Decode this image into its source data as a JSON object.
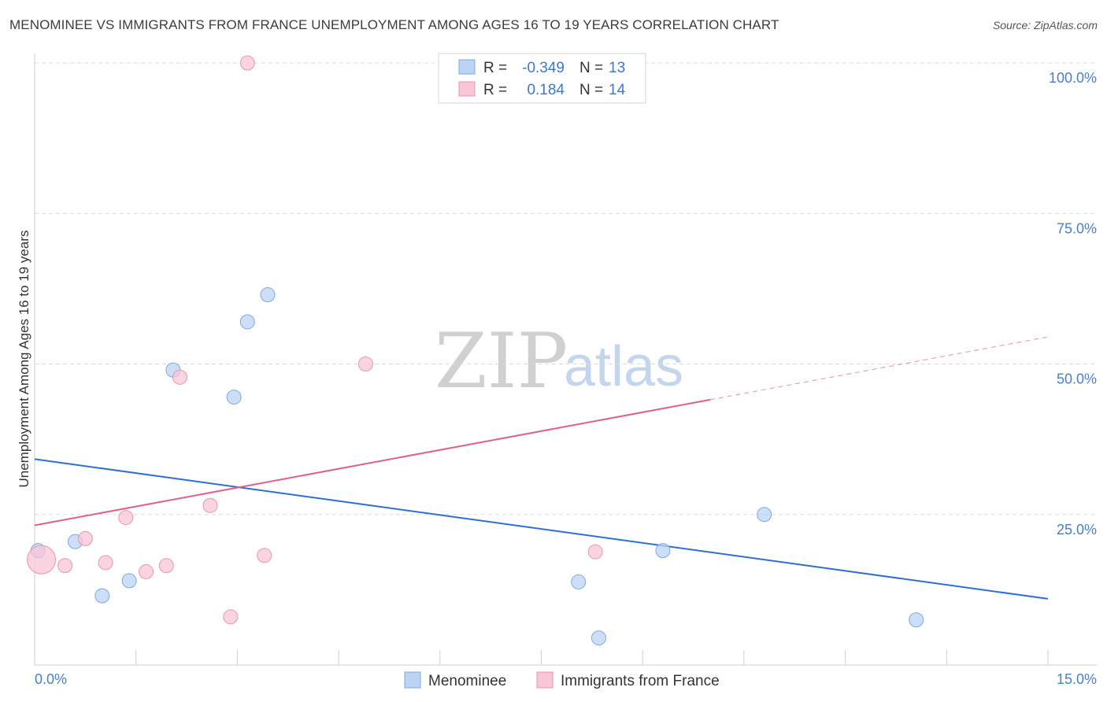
{
  "title": "MENOMINEE VS IMMIGRANTS FROM FRANCE UNEMPLOYMENT AMONG AGES 16 TO 19 YEARS CORRELATION CHART",
  "source": "Source: ZipAtlas.com",
  "watermark": {
    "zip": "ZIP",
    "atlas": "atlas"
  },
  "colors": {
    "blue_fill": "#bcd4f4",
    "blue_stroke": "#7fa8e0",
    "blue_line": "#2f6fd0",
    "pink_fill": "#f8c6d4",
    "pink_stroke": "#e896b0",
    "pink_line": "#e0608a",
    "grid": "#dadada",
    "axis_text": "#4a7fc8"
  },
  "legend_top": {
    "rows": [
      {
        "r_label": "R =",
        "r_value": "-0.349",
        "n_label": "N =",
        "n_value": "13"
      },
      {
        "r_label": "R =",
        "r_value": "0.184",
        "n_label": "N =",
        "n_value": "14"
      }
    ]
  },
  "legend_bottom": [
    "Menominee",
    "Immigrants from France"
  ],
  "chart_data": {
    "type": "scatter",
    "xlabel": "",
    "ylabel": "Unemployment Among Ages 16 to 19 years",
    "xlim": [
      0,
      15
    ],
    "ylim": [
      0,
      102
    ],
    "x_tick_labels": [
      "0.0%",
      "15.0%"
    ],
    "y_tick_labels": [
      "25.0%",
      "50.0%",
      "75.0%",
      "100.0%"
    ],
    "y_ticks": [
      25,
      50,
      75,
      100
    ],
    "series": [
      {
        "name": "Menominee",
        "color": "blue",
        "points": [
          {
            "x": 0.05,
            "y": 19.0,
            "r": 9
          },
          {
            "x": 0.6,
            "y": 20.5,
            "r": 9
          },
          {
            "x": 1.0,
            "y": 11.5,
            "r": 9
          },
          {
            "x": 1.4,
            "y": 14.0,
            "r": 9
          },
          {
            "x": 2.05,
            "y": 49.0,
            "r": 9
          },
          {
            "x": 2.95,
            "y": 44.5,
            "r": 9
          },
          {
            "x": 3.15,
            "y": 57.0,
            "r": 9
          },
          {
            "x": 3.45,
            "y": 61.5,
            "r": 9
          },
          {
            "x": 8.05,
            "y": 13.8,
            "r": 9
          },
          {
            "x": 8.35,
            "y": 4.5,
            "r": 9
          },
          {
            "x": 9.3,
            "y": 19.0,
            "r": 9
          },
          {
            "x": 10.8,
            "y": 25.0,
            "r": 9
          },
          {
            "x": 13.05,
            "y": 7.5,
            "r": 9
          }
        ],
        "trend": {
          "x0": 0,
          "y0": 34.2,
          "x1": 15,
          "y1": 11.0,
          "dashed_from": null
        }
      },
      {
        "name": "Immigrants from France",
        "color": "pink",
        "points": [
          {
            "x": 0.1,
            "y": 17.5,
            "r": 18
          },
          {
            "x": 0.45,
            "y": 16.5,
            "r": 9
          },
          {
            "x": 0.75,
            "y": 21.0,
            "r": 9
          },
          {
            "x": 1.05,
            "y": 17.0,
            "r": 9
          },
          {
            "x": 1.35,
            "y": 24.5,
            "r": 9
          },
          {
            "x": 1.65,
            "y": 15.5,
            "r": 9
          },
          {
            "x": 1.95,
            "y": 16.5,
            "r": 9
          },
          {
            "x": 2.15,
            "y": 47.8,
            "r": 9
          },
          {
            "x": 2.6,
            "y": 26.5,
            "r": 9
          },
          {
            "x": 2.9,
            "y": 8.0,
            "r": 9
          },
          {
            "x": 3.15,
            "y": 100.0,
            "r": 9
          },
          {
            "x": 3.4,
            "y": 18.2,
            "r": 9
          },
          {
            "x": 4.9,
            "y": 50.0,
            "r": 9
          },
          {
            "x": 8.3,
            "y": 18.8,
            "r": 9
          }
        ],
        "trend": {
          "x0": 0,
          "y0": 23.2,
          "x1": 15,
          "y1": 54.5,
          "dashed_from": 10.0
        }
      }
    ]
  }
}
